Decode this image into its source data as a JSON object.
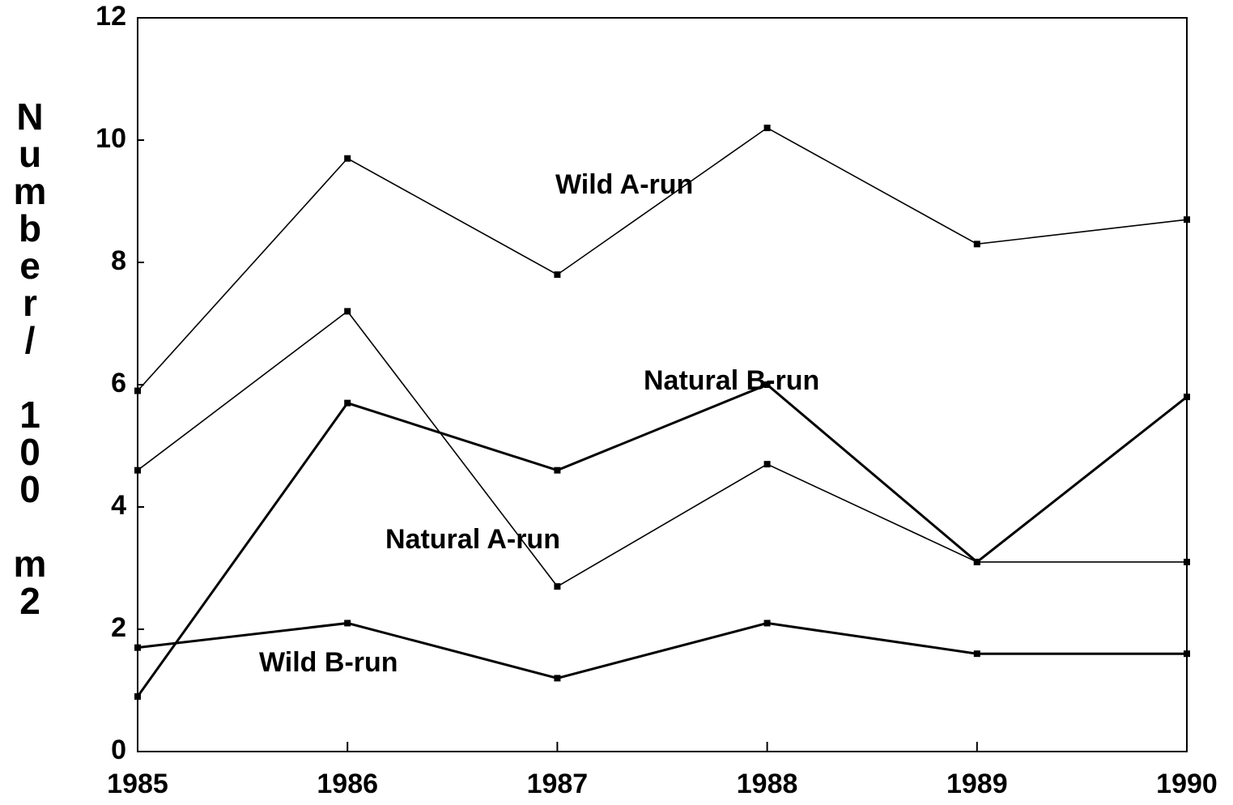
{
  "chart_data": {
    "type": "line",
    "y_label": "Number/ 100 m2",
    "x": [
      1985,
      1986,
      1987,
      1988,
      1989,
      1990
    ],
    "series": [
      {
        "name": "Wild A-run",
        "color": "#000000",
        "values": [
          5.9,
          9.7,
          7.8,
          10.2,
          8.3,
          8.7
        ]
      },
      {
        "name": "Natural A-run",
        "color": "#000000",
        "values": [
          4.6,
          7.2,
          2.7,
          4.7,
          3.1,
          3.1
        ]
      },
      {
        "name": "Natural B-run",
        "color": "#000000",
        "values": [
          0.9,
          5.7,
          4.6,
          6.0,
          3.1,
          5.8
        ]
      },
      {
        "name": "Wild B-run",
        "color": "#000000",
        "values": [
          1.7,
          2.1,
          1.2,
          2.1,
          1.6,
          1.6
        ]
      }
    ],
    "xlim": [
      1985,
      1990
    ],
    "xticks": [
      1985,
      1986,
      1987,
      1988,
      1989,
      1990
    ],
    "ylim": [
      0,
      12
    ],
    "yticks": [
      0,
      2,
      4,
      6,
      8,
      10,
      12
    ],
    "grid": false
  }
}
